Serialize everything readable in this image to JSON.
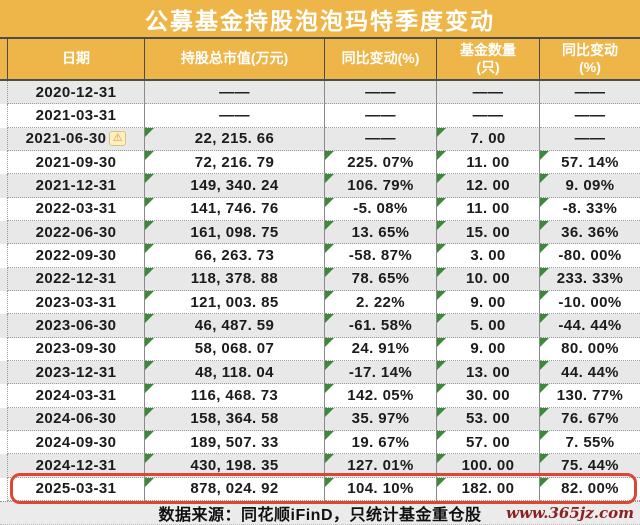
{
  "title": "公募基金持股泡泡玛特季度变动",
  "table": {
    "columns": [
      "日期",
      "持股总市值(万元)",
      "同比变动(%)",
      "基金数量\n(只)",
      "同比变动\n(%)"
    ],
    "na_text": "——",
    "rows": [
      {
        "date": "2020-12-31",
        "value": "——",
        "yoy_value": "——",
        "fund_count": "——",
        "yoy_count": "——"
      },
      {
        "date": "2021-03-31",
        "value": "——",
        "yoy_value": "——",
        "fund_count": "——",
        "yoy_count": "——"
      },
      {
        "date": "2021-06-30",
        "value": "22, 215. 66",
        "yoy_value": "——",
        "fund_count": "7. 00",
        "yoy_count": "——",
        "warning": true
      },
      {
        "date": "2021-09-30",
        "value": "72, 216. 79",
        "yoy_value": "225. 07%",
        "fund_count": "11. 00",
        "yoy_count": "57. 14%"
      },
      {
        "date": "2021-12-31",
        "value": "149, 340. 24",
        "yoy_value": "106. 79%",
        "fund_count": "12. 00",
        "yoy_count": "9. 09%"
      },
      {
        "date": "2022-03-31",
        "value": "141, 746. 76",
        "yoy_value": "-5. 08%",
        "fund_count": "11. 00",
        "yoy_count": "-8. 33%"
      },
      {
        "date": "2022-06-30",
        "value": "161, 098. 75",
        "yoy_value": "13. 65%",
        "fund_count": "15. 00",
        "yoy_count": "36. 36%"
      },
      {
        "date": "2022-09-30",
        "value": "66, 263. 73",
        "yoy_value": "-58. 87%",
        "fund_count": "3. 00",
        "yoy_count": "-80. 00%"
      },
      {
        "date": "2022-12-31",
        "value": "118, 378. 88",
        "yoy_value": "78. 65%",
        "fund_count": "10. 00",
        "yoy_count": "233. 33%"
      },
      {
        "date": "2023-03-31",
        "value": "121, 003. 85",
        "yoy_value": "2. 22%",
        "fund_count": "9. 00",
        "yoy_count": "-10. 00%"
      },
      {
        "date": "2023-06-30",
        "value": "46, 487. 59",
        "yoy_value": "-61. 58%",
        "fund_count": "5. 00",
        "yoy_count": "-44. 44%"
      },
      {
        "date": "2023-09-30",
        "value": "58, 068. 07",
        "yoy_value": "24. 91%",
        "fund_count": "9. 00",
        "yoy_count": "80. 00%"
      },
      {
        "date": "2023-12-31",
        "value": "48, 118. 04",
        "yoy_value": "-17. 14%",
        "fund_count": "13. 00",
        "yoy_count": "44. 44%"
      },
      {
        "date": "2024-03-31",
        "value": "116, 468. 73",
        "yoy_value": "142. 05%",
        "fund_count": "30. 00",
        "yoy_count": "130. 77%"
      },
      {
        "date": "2024-06-30",
        "value": "158, 364. 58",
        "yoy_value": "35. 97%",
        "fund_count": "53. 00",
        "yoy_count": "76. 67%"
      },
      {
        "date": "2024-09-30",
        "value": "189, 507. 33",
        "yoy_value": "19. 67%",
        "fund_count": "57. 00",
        "yoy_count": "7. 55%"
      },
      {
        "date": "2024-12-31",
        "value": "430, 198. 35",
        "yoy_value": "127. 01%",
        "fund_count": "100. 00",
        "yoy_count": "75. 44%"
      },
      {
        "date": "2025-03-31",
        "value": "878, 024. 92",
        "yoy_value": "104. 10%",
        "fund_count": "182. 00",
        "yoy_count": "82. 00%",
        "highlighted": true
      }
    ]
  },
  "footer": {
    "source": "数据来源：同花顺iFinD，只统计基金重仓股",
    "watermark": "www.365jz.com"
  },
  "icons": {
    "warning": "⚠"
  },
  "colors": {
    "header_orange": "#EEB648",
    "row_alt_gray": "#E8E8E8",
    "highlight_red": "#DC4632",
    "indicator_green": "#3A8A3A",
    "watermark_maroon": "#8B2121"
  }
}
